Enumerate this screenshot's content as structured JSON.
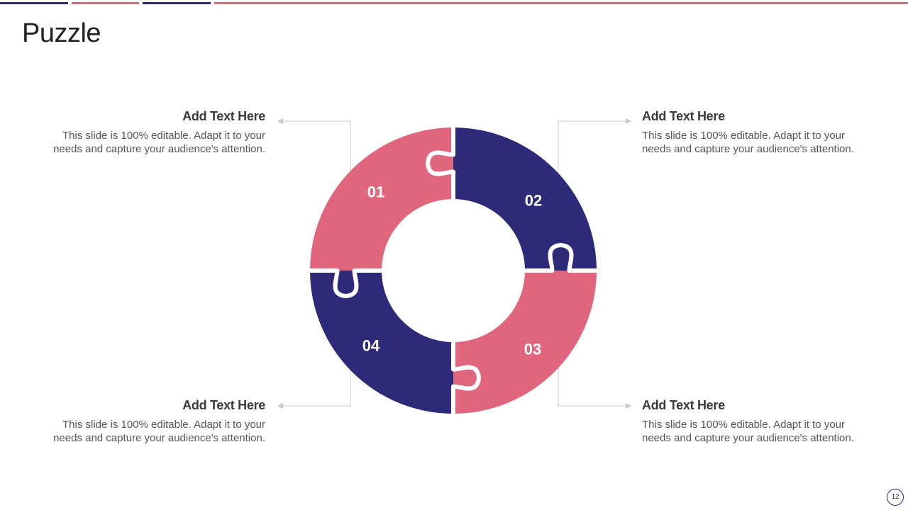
{
  "title": "Puzzle",
  "colors": {
    "pink": "#e0667e",
    "navy": "#2e2a7a",
    "connector": "#c9c9c9"
  },
  "pieces": [
    {
      "number": "01",
      "color": "pink"
    },
    {
      "number": "02",
      "color": "navy"
    },
    {
      "number": "03",
      "color": "pink"
    },
    {
      "number": "04",
      "color": "navy"
    }
  ],
  "blocks": [
    {
      "heading": "Add Text Here",
      "body_line1": "This slide is 100% editable. Adapt it to your",
      "body_line2": "needs and capture your audience's attention."
    },
    {
      "heading": "Add Text Here",
      "body_line1": "This slide is 100% editable. Adapt it to your",
      "body_line2": "needs and capture your audience's attention."
    },
    {
      "heading": "Add Text Here",
      "body_line1": "This slide is 100% editable. Adapt it to your",
      "body_line2": "needs and capture your audience's attention."
    },
    {
      "heading": "Add Text Here",
      "body_line1": "This slide is 100% editable. Adapt it to your",
      "body_line2": "needs and capture your audience's attention."
    }
  ],
  "page_number": "12"
}
